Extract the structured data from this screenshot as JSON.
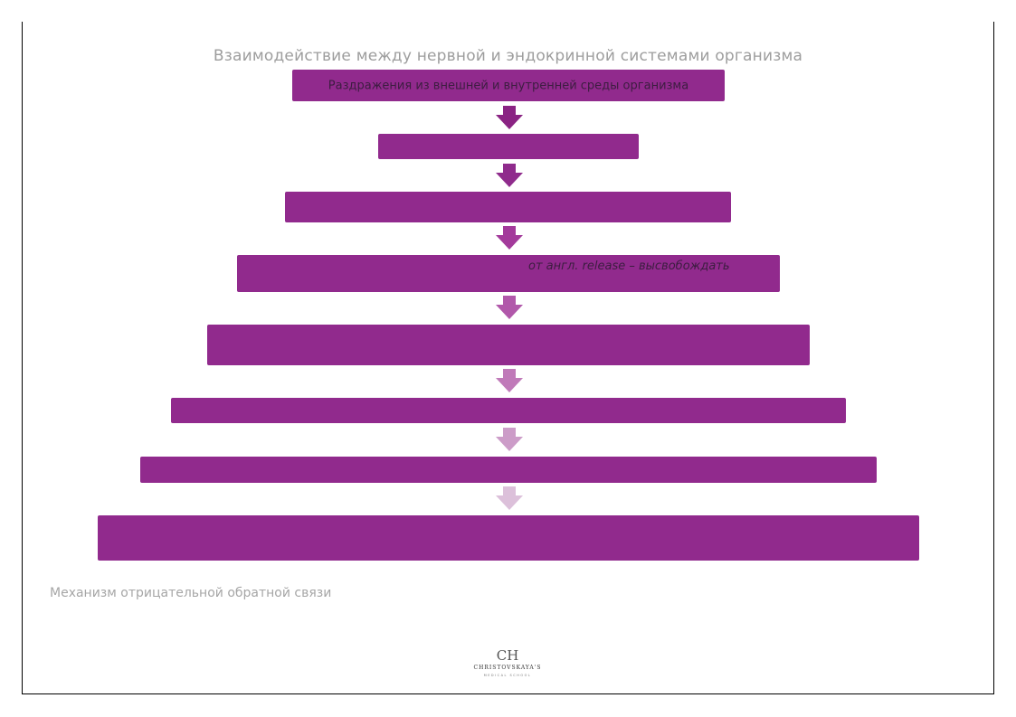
{
  "title": "Взаимодействие между нервной и эндокринной системами организма",
  "steps": [
    {
      "label": "Раздражения из внешней и внутренней среды организма",
      "note": ""
    },
    {
      "label": "",
      "note": ""
    },
    {
      "label": "",
      "note": ""
    },
    {
      "label": "",
      "note": "от англ. release – высвобождать"
    },
    {
      "label": "",
      "note": ""
    },
    {
      "label": "",
      "note": ""
    },
    {
      "label": "",
      "note": ""
    },
    {
      "label": "",
      "note": ""
    }
  ],
  "caption": "Механизм отрицательной обратной связи",
  "logo": {
    "mark": "CH",
    "name": "CHRISTOVSKAYA'S",
    "sub": "MEDICAL SCHOOL"
  },
  "colors": {
    "box": "#912a8d",
    "arrows": [
      "#8a2383",
      "#8f2b8c",
      "#a33a9b",
      "#b158aa",
      "#c07ab9",
      "#cc9cc8",
      "#dcc0da"
    ]
  }
}
